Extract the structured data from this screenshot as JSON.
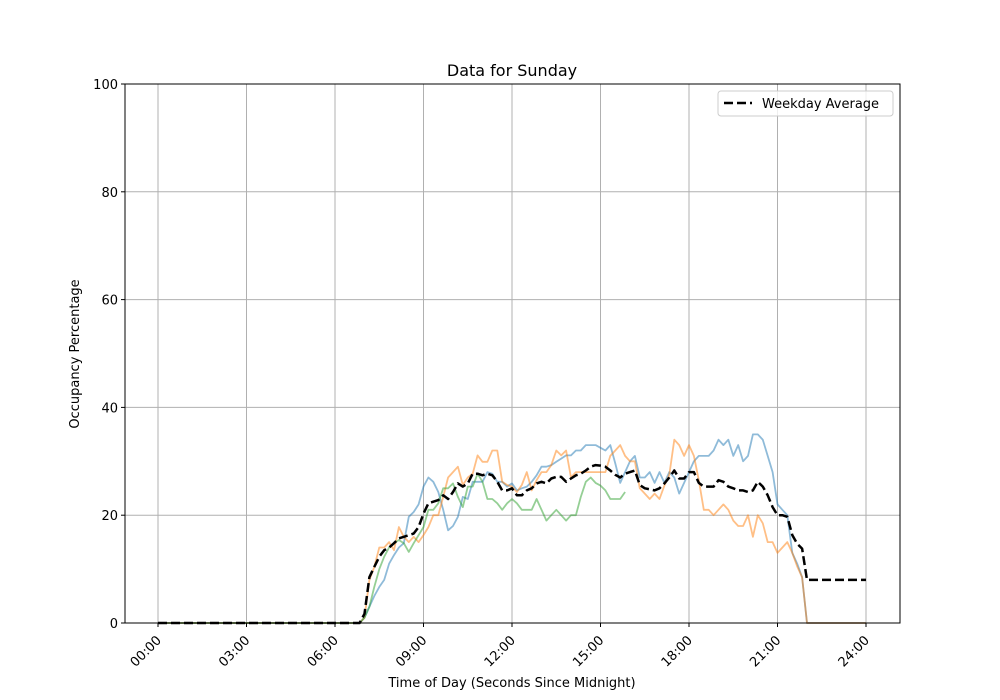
{
  "chart_data": {
    "type": "line",
    "title": "Data for Sunday",
    "xlabel": "Time of Day (Seconds Since Midnight)",
    "ylabel": "Occupancy Percentage",
    "xlim": [
      "00:00",
      "24:00"
    ],
    "ylim": [
      0,
      100
    ],
    "grid": true,
    "legend_position": "top-right",
    "x_ticks": [
      "00:00",
      "03:00",
      "06:00",
      "09:00",
      "12:00",
      "15:00",
      "18:00",
      "21:00",
      "24:00"
    ],
    "y_ticks": [
      0,
      20,
      40,
      60,
      80,
      100
    ],
    "x": [
      "00:00",
      "06:50",
      "07:00",
      "07:10",
      "07:20",
      "07:30",
      "07:40",
      "07:50",
      "08:00",
      "08:10",
      "08:20",
      "08:30",
      "08:40",
      "08:50",
      "09:00",
      "09:10",
      "09:20",
      "09:30",
      "09:40",
      "09:50",
      "10:00",
      "10:10",
      "10:20",
      "10:30",
      "10:40",
      "10:50",
      "11:00",
      "11:10",
      "11:20",
      "11:30",
      "11:40",
      "11:50",
      "12:00",
      "12:10",
      "12:20",
      "12:30",
      "12:40",
      "12:50",
      "13:00",
      "13:10",
      "13:20",
      "13:30",
      "13:40",
      "13:50",
      "14:00",
      "14:10",
      "14:20",
      "14:30",
      "14:40",
      "14:50",
      "15:00",
      "15:10",
      "15:20",
      "15:30",
      "15:40",
      "15:50",
      "16:00",
      "16:10",
      "16:20",
      "16:30",
      "16:40",
      "16:50",
      "17:00",
      "17:10",
      "17:20",
      "17:30",
      "17:40",
      "17:50",
      "18:00",
      "18:10",
      "18:20",
      "18:30",
      "18:40",
      "18:50",
      "19:00",
      "19:10",
      "19:20",
      "19:30",
      "19:40",
      "19:50",
      "20:00",
      "20:10",
      "20:20",
      "20:30",
      "20:40",
      "20:50",
      "21:00",
      "21:10",
      "21:20",
      "21:30",
      "21:40",
      "21:50",
      "22:00",
      "24:00"
    ],
    "series": [
      {
        "color": "#1f77b4",
        "style": "solid",
        "alpha": 0.5,
        "values": [
          0,
          0,
          1,
          3,
          5,
          6.7,
          8,
          11,
          12.6,
          14,
          14.8,
          19.7,
          20.6,
          22,
          25.3,
          27,
          26.2,
          24.3,
          21,
          17.2,
          18,
          19.7,
          23.4,
          23,
          26.2,
          26.2,
          26.2,
          28,
          27.7,
          26.2,
          26.2,
          25.3,
          25.9,
          24.6,
          25,
          25.3,
          26.2,
          27.4,
          29,
          29,
          29.3,
          29.9,
          30.5,
          31.1,
          31.1,
          32,
          32,
          33,
          33,
          33,
          32.5,
          32,
          33,
          29.6,
          26,
          28,
          30,
          31,
          27,
          27,
          28,
          26,
          28,
          26,
          28,
          27,
          24,
          26,
          28,
          30,
          31,
          31,
          31,
          32,
          34,
          33,
          34,
          31,
          33,
          30,
          31,
          35,
          35,
          34,
          31,
          28,
          22,
          21,
          20,
          13,
          11,
          8.5,
          0,
          0
        ]
      },
      {
        "color": "#ff7f0e",
        "style": "solid",
        "alpha": 0.5,
        "values": [
          0,
          0,
          1,
          8,
          10.4,
          14,
          14,
          15,
          13.5,
          17.8,
          16,
          15,
          16,
          15,
          16.3,
          17.8,
          20,
          20,
          23.4,
          27,
          28,
          29,
          25.6,
          27,
          27.7,
          31.1,
          29.9,
          29.9,
          32,
          32,
          26.2,
          25.6,
          25.3,
          24.3,
          25.6,
          28,
          24.6,
          26.5,
          28,
          28,
          29.3,
          32,
          31.1,
          32,
          27,
          28,
          28,
          28,
          28,
          28,
          28,
          28,
          31,
          32,
          33,
          31,
          30,
          30,
          25,
          24,
          23,
          24,
          23,
          25.5,
          27.5,
          34,
          33,
          31,
          33,
          31,
          26.5,
          21,
          21,
          20,
          21,
          22,
          21,
          19,
          18,
          18,
          20,
          16,
          20,
          18.5,
          15,
          15,
          13,
          14,
          15,
          13,
          10.5,
          8.5,
          0,
          0
        ]
      },
      {
        "color": "#2ca02c",
        "style": "solid",
        "alpha": 0.5,
        "values": [
          0,
          0,
          1,
          3,
          6.7,
          10,
          12.3,
          14,
          14.8,
          15.4,
          14.8,
          13.2,
          14.8,
          16.3,
          17.8,
          21,
          21,
          22.2,
          25,
          25,
          25.9,
          23.4,
          21.5,
          25.3,
          25.3,
          27.7,
          26.2,
          23,
          23,
          22.2,
          21,
          22.2,
          23,
          22.2,
          21,
          21,
          21,
          23,
          21,
          19,
          20,
          21,
          20,
          19,
          20,
          20,
          23.4,
          26.2,
          27,
          26,
          25.5,
          24.6,
          23,
          23,
          23,
          24.3,
          null,
          null,
          null,
          null,
          null,
          null,
          null,
          null,
          null,
          null,
          null,
          null,
          null,
          null,
          null,
          null,
          null,
          null,
          null,
          null,
          null,
          null,
          null,
          null,
          null,
          null,
          null,
          null,
          null,
          null,
          null,
          null,
          null,
          null,
          null,
          null,
          null,
          null
        ]
      },
      {
        "name": "Weekday Average",
        "color": "#000000",
        "style": "dashed",
        "alpha": 1,
        "values": [
          0,
          0,
          1.7,
          8.5,
          10.4,
          12.3,
          13.5,
          14,
          14.8,
          15.7,
          16,
          16.3,
          16.6,
          17.8,
          20.3,
          22.2,
          22.5,
          22.8,
          23.7,
          23,
          24.3,
          25.9,
          25.3,
          25.9,
          27.7,
          27.7,
          27.4,
          27.7,
          27.4,
          26.2,
          24.6,
          24.6,
          25,
          23.7,
          23.7,
          24.6,
          25,
          25.9,
          26.2,
          25.9,
          26.8,
          27.1,
          27.1,
          26.2,
          26.8,
          27.4,
          27.7,
          28.3,
          29,
          29.3,
          29.2,
          29,
          28.3,
          27.5,
          27,
          27.7,
          28,
          28.3,
          25.6,
          25,
          24.8,
          24.6,
          25,
          25.9,
          27,
          28.3,
          26.8,
          26.8,
          28,
          28,
          26,
          25.3,
          25.3,
          25.3,
          26.5,
          26.2,
          25.3,
          25,
          24.6,
          24.6,
          24.3,
          24.6,
          26.2,
          25.3,
          23.7,
          21.5,
          20,
          20,
          19.7,
          16.3,
          14.7,
          13.8,
          8,
          8
        ]
      }
    ]
  }
}
